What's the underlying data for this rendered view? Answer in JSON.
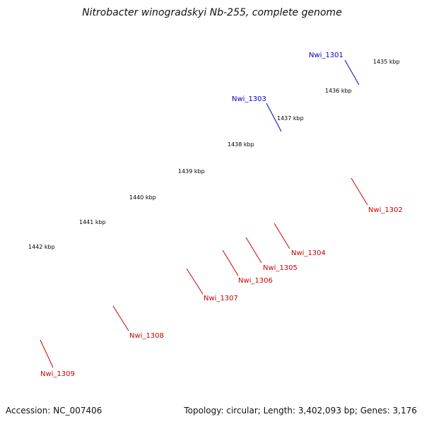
{
  "title": "Nitrobacter winogradskyi Nb-255, complete genome",
  "footer": {
    "accession": "Accession: NC_007406",
    "stats": "Topology: circular; Length: 3,402,093 bp; Genes: 3,176"
  },
  "colors": {
    "backbone": "#7a7a7a",
    "tick_dot": "#1a7a1a",
    "forward_label": "#cc0000",
    "reverse_label": "#0000cc",
    "red": "#ee1111",
    "blue": "#1111ee",
    "cyan": "#22bbee",
    "gray": "#666666",
    "lightgray": "#bbbbbb",
    "navy": "#443388",
    "green": "#22aa22"
  },
  "kbp_ticks": [
    "1435 kbp",
    "1436 kbp",
    "1437 kbp",
    "1438 kbp",
    "1439 kbp",
    "1440 kbp",
    "1441 kbp",
    "1442 kbp"
  ],
  "gene_labels": [
    "Nwi_1301",
    "Nwi_1302",
    "Nwi_1303",
    "Nwi_1304",
    "Nwi_1305",
    "Nwi_1306",
    "Nwi_1307",
    "Nwi_1308",
    "Nwi_1309"
  ]
}
